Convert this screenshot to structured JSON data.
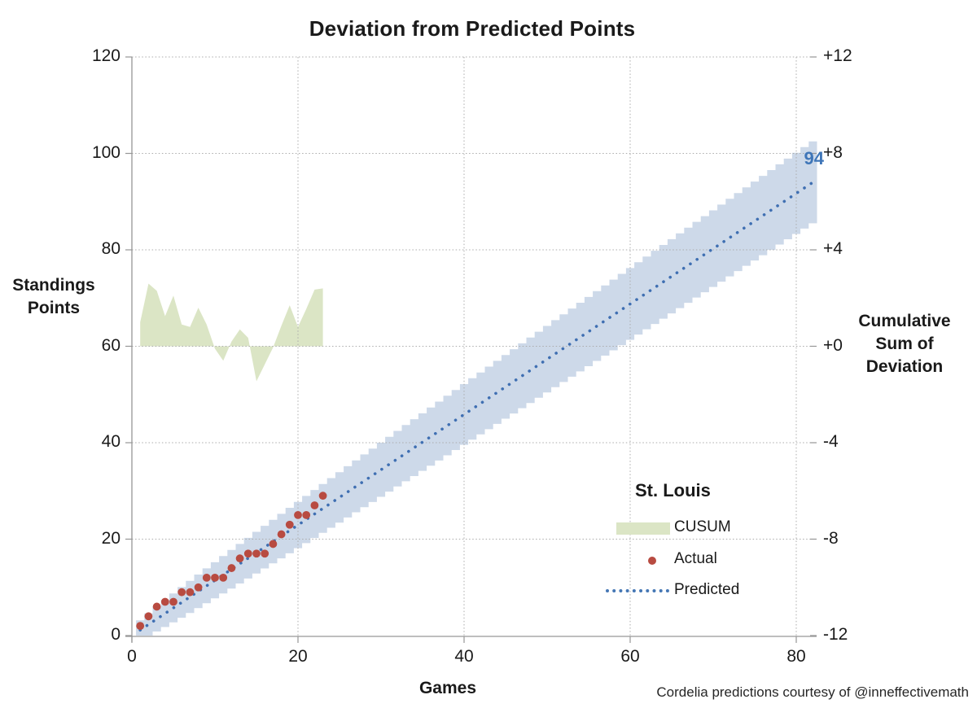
{
  "title": "Deviation from Predicted Points",
  "footer_credit": "Cordelia predictions courtesy of @inneffectivemath",
  "colors": {
    "cusum_fill": "#dbe5c5",
    "band_fill": "#cdd9e9",
    "actual_dot": "#b84b41",
    "predicted_line": "#3f6fb2",
    "annotation_blue": "#3f76b8",
    "gridline": "#ababab",
    "axis_line": "#969696"
  },
  "legend": {
    "title": "St. Louis",
    "items": [
      {
        "label": "CUSUM",
        "swatch": "area-swatch",
        "color": "#dbe5c5"
      },
      {
        "label": "Actual",
        "swatch": "dot-swatch",
        "color": "#b84b41"
      },
      {
        "label": "Predicted",
        "swatch": "dotted-line-swatch",
        "color": "#4577b5"
      }
    ]
  },
  "annotation": {
    "text": "94"
  },
  "chart_data": {
    "type": "combo",
    "x_axis": {
      "title": "Games",
      "tick_values": [
        0,
        20,
        40,
        60,
        80
      ],
      "tick_labels": [
        "0",
        "20",
        "40",
        "60",
        "80"
      ],
      "range": [
        0,
        82.5
      ],
      "grid": true
    },
    "left_axis": {
      "title_lines": [
        "Standings",
        "Points"
      ],
      "tick_values": [
        120,
        100,
        80,
        60,
        40,
        20,
        0
      ],
      "tick_labels": [
        "120",
        "100",
        "80",
        "60",
        "40",
        "20",
        "0"
      ],
      "range": [
        0,
        120
      ],
      "grid": true
    },
    "right_axis": {
      "title_lines": [
        "Cumulative",
        "Sum of",
        "Deviation"
      ],
      "tick_values": [
        12,
        8,
        4,
        0,
        -4,
        -8,
        -12
      ],
      "tick_labels": [
        "+12",
        "+8",
        "+4",
        "+0",
        "-4",
        "-8",
        "-12"
      ],
      "range": [
        -12,
        12
      ]
    },
    "series": [
      {
        "name": "Prediction band",
        "type": "stepped_band",
        "axis": "left",
        "fill": "#cdd9e9",
        "games_range": [
          1,
          82
        ],
        "halfwidth_base": 1.2,
        "halfwidth_sqrt_coeff": 7.3,
        "note": "halfwidth(n) = base + coeff*sqrt(n/82); lower edge clipped at 0; band at game 82 spans approx 85 to 102 points"
      },
      {
        "name": "CUSUM",
        "type": "area",
        "axis": "right",
        "fill": "#dbe5c5",
        "games": [
          1,
          2,
          3,
          4,
          5,
          6,
          7,
          8,
          9,
          10,
          11,
          12,
          13,
          14,
          15,
          16,
          17,
          18,
          19,
          20,
          21,
          22,
          23
        ],
        "values": [
          1.0,
          2.6,
          2.3,
          1.25,
          2.1,
          0.9,
          0.8,
          1.6,
          0.9,
          -0.1,
          -0.6,
          0.2,
          0.7,
          0.35,
          -1.45,
          -0.75,
          -0.05,
          0.85,
          1.7,
          0.8,
          1.55,
          2.35,
          2.4
        ]
      },
      {
        "name": "Actual",
        "type": "scatter",
        "axis": "left",
        "color": "#b84b41",
        "games": [
          1,
          2,
          3,
          4,
          5,
          6,
          7,
          8,
          9,
          10,
          11,
          12,
          13,
          14,
          15,
          16,
          17,
          18,
          19,
          20,
          21,
          22,
          23
        ],
        "values": [
          2,
          4,
          6,
          7,
          7,
          9,
          9,
          10,
          12,
          12,
          12,
          14,
          16,
          17,
          17,
          17,
          19,
          21,
          23,
          25,
          25,
          27,
          29
        ]
      },
      {
        "name": "Predicted",
        "type": "dotted_line",
        "axis": "left",
        "color": "#3f6fb2",
        "start_game": 1,
        "end_game": 82,
        "end_points": 94,
        "note": "linear pace, approx 1.146 points per game, reaching 94 at game 82"
      }
    ],
    "annotations": [
      {
        "text": "94",
        "game": 82,
        "points": 94,
        "color": "#3f76b8"
      }
    ]
  }
}
